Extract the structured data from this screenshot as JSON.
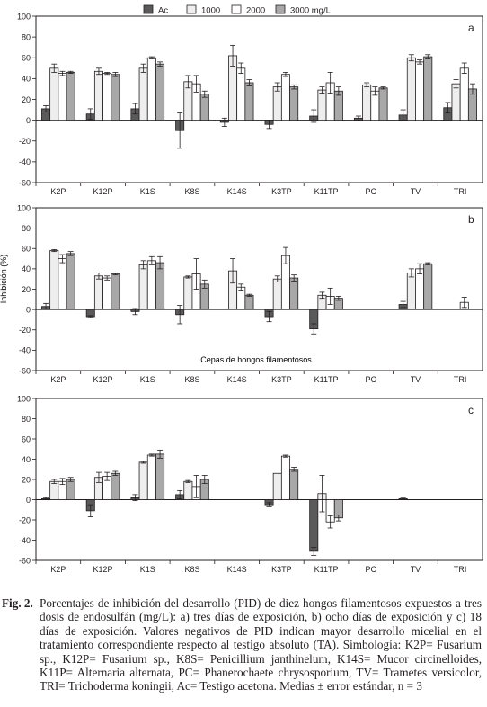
{
  "legend": {
    "items": [
      {
        "label": "Ac",
        "color": "#5a5a5a"
      },
      {
        "label": "1000",
        "color": "#eeeeee"
      },
      {
        "label": "2000",
        "color": "#ffffff"
      },
      {
        "label": "3000 mg/L",
        "color": "#a8a8a8"
      }
    ]
  },
  "ylabel": "Inhibición (%)",
  "xlabel": "Cepas de hongos filamentosos",
  "caption": {
    "label": "Fig. 2.",
    "text": "Porcentajes de inhibición del desarrollo (PID) de diez hongos filamentosos expuestos a tres dosis de endosulfán (mg/L): a) tres días de exposición, b) ocho días de exposición y c) 18 días de exposición. Valores negativos de PID indican mayor desarrollo micelial en el tratamiento correspondiente respecto al testigo absoluto (TA). Simbología: K2P= Fusarium sp., K12P= Fusarium sp., K8S= Penicillium janthinelum, K14S= Mucor circinelloides, K11P= Alternaria alternata, PC= Phanerochaete chrysosporium, TV= Trametes versicolor, TRI= Trichoderma koningii, Ac= Testigo acetona. Medias ± error estándar, n = 3"
  },
  "chart_data": [
    {
      "type": "bar",
      "panel": "a",
      "categories": [
        "K2P",
        "K12P",
        "K1S",
        "K8S",
        "K14S",
        "K3TP",
        "K11TP",
        "PC",
        "TV",
        "TRI"
      ],
      "ylim": [
        -60,
        100
      ],
      "yticks": [
        -60,
        -40,
        -20,
        0,
        20,
        40,
        60,
        80,
        100
      ],
      "series": [
        {
          "name": "Ac",
          "values": [
            11,
            6,
            11,
            -10,
            -2,
            -4,
            4,
            2,
            5,
            12
          ],
          "errors": [
            3,
            5,
            5,
            17,
            4,
            4,
            6,
            2,
            5,
            5
          ]
        },
        {
          "name": "1000",
          "values": [
            50,
            47,
            50,
            37,
            62,
            32,
            29,
            34,
            60,
            35
          ],
          "errors": [
            4,
            3,
            4,
            6,
            10,
            4,
            3,
            2,
            3,
            4
          ]
        },
        {
          "name": "2000",
          "values": [
            45,
            45,
            60,
            35,
            50,
            44,
            36,
            28,
            56,
            50
          ],
          "errors": [
            2,
            1,
            1,
            8,
            5,
            2,
            10,
            4,
            2,
            5
          ]
        },
        {
          "name": "3000 mg/L",
          "values": [
            46,
            44,
            54,
            25,
            36,
            32,
            28,
            31,
            61,
            30
          ],
          "errors": [
            1,
            2,
            2,
            3,
            3,
            2,
            4,
            1,
            2,
            5
          ]
        }
      ]
    },
    {
      "type": "bar",
      "panel": "b",
      "categories": [
        "K2P",
        "K12P",
        "K1S",
        "K8S",
        "K14S",
        "K3TP",
        "K11TP",
        "PC",
        "TV",
        "TRI"
      ],
      "ylim": [
        -60,
        100
      ],
      "yticks": [
        -60,
        -40,
        -20,
        0,
        20,
        40,
        60,
        80,
        100
      ],
      "series": [
        {
          "name": "Ac",
          "values": [
            3,
            -7,
            -2,
            -5,
            null,
            -7,
            -19,
            null,
            5,
            null
          ],
          "errors": [
            3,
            1,
            3,
            9,
            null,
            5,
            5,
            null,
            3,
            null
          ]
        },
        {
          "name": "1000",
          "values": [
            58,
            33,
            44,
            32,
            38,
            30,
            14,
            null,
            36,
            null
          ],
          "errors": [
            1,
            3,
            4,
            1,
            12,
            3,
            3,
            null,
            4,
            null
          ]
        },
        {
          "name": "2000",
          "values": [
            50,
            31,
            48,
            35,
            22,
            53,
            13,
            null,
            40,
            7
          ],
          "errors": [
            4,
            2,
            4,
            15,
            3,
            8,
            8,
            null,
            5,
            5
          ]
        },
        {
          "name": "3000 mg/L",
          "values": [
            55,
            35,
            46,
            25,
            14,
            31,
            11,
            null,
            45,
            null
          ],
          "errors": [
            2,
            1,
            6,
            4,
            1,
            3,
            2,
            null,
            1,
            null
          ]
        }
      ]
    },
    {
      "type": "bar",
      "panel": "c",
      "categories": [
        "K2P",
        "K12P",
        "K1S",
        "K8S",
        "K14S",
        "K3TP",
        "K11TP",
        "PC",
        "TV",
        "TRI"
      ],
      "ylim": [
        -60,
        100
      ],
      "yticks": [
        -60,
        -40,
        -20,
        0,
        20,
        40,
        60,
        80,
        100
      ],
      "series": [
        {
          "name": "Ac",
          "values": [
            1,
            -11,
            2,
            5,
            null,
            -5,
            -51,
            null,
            1,
            null
          ],
          "errors": [
            1,
            6,
            3,
            4,
            null,
            2,
            4,
            null,
            1,
            null
          ]
        },
        {
          "name": "1000",
          "values": [
            18,
            22,
            37,
            18,
            null,
            26,
            6,
            null,
            null,
            null
          ],
          "errors": [
            2,
            5,
            1,
            1,
            null,
            0,
            18,
            null,
            null,
            null
          ]
        },
        {
          "name": "2000",
          "values": [
            18,
            23,
            44,
            13,
            null,
            43,
            -22,
            null,
            null,
            null
          ],
          "errors": [
            3,
            4,
            1,
            11,
            null,
            1,
            6,
            null,
            null,
            null
          ]
        },
        {
          "name": "3000 mg/L",
          "values": [
            20,
            26,
            45,
            20,
            null,
            30,
            -18,
            null,
            null,
            null
          ],
          "errors": [
            2,
            2,
            4,
            4,
            null,
            2,
            3,
            null,
            null,
            null
          ]
        }
      ]
    }
  ]
}
